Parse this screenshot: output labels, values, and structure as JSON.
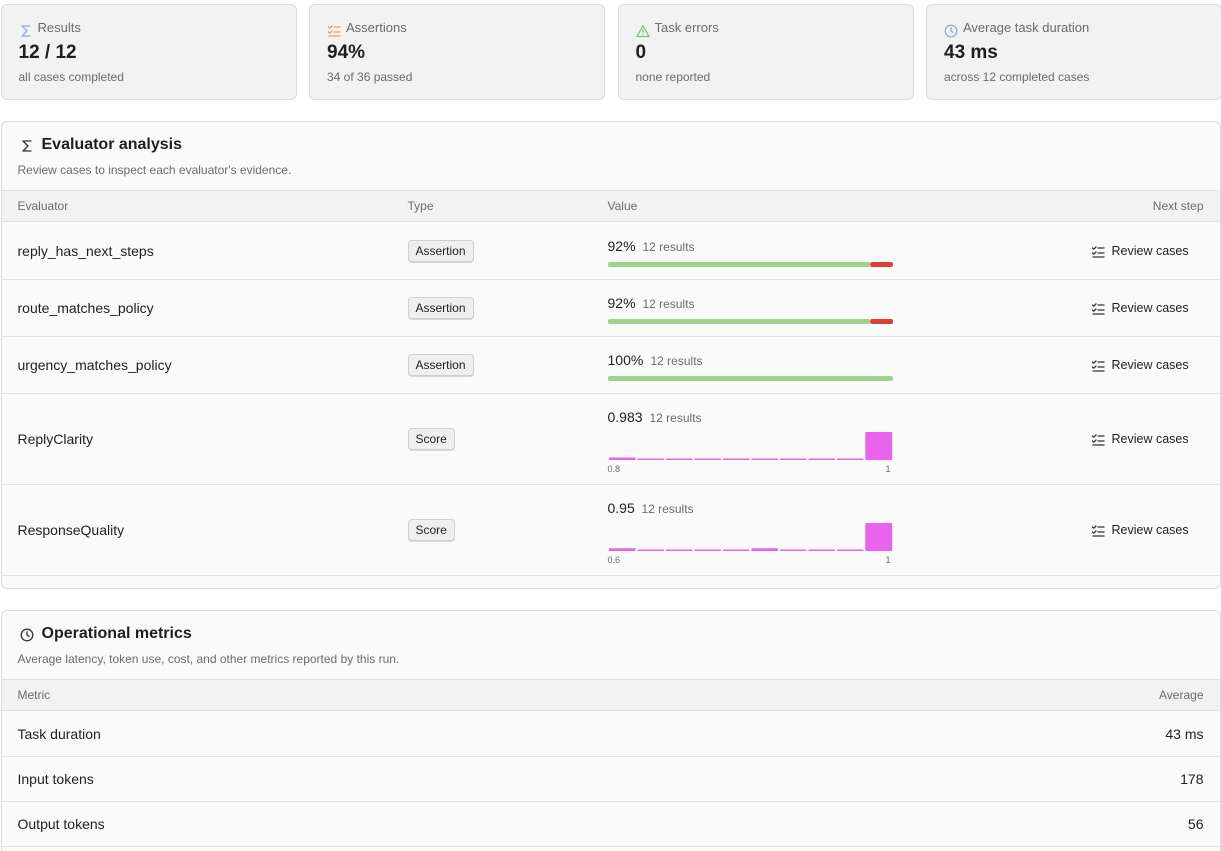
{
  "stats": [
    {
      "label": "Results",
      "value": "12 / 12",
      "detail": "all cases completed"
    },
    {
      "label": "Assertions",
      "value": "94%",
      "detail": "34 of 36 passed"
    },
    {
      "label": "Task errors",
      "value": "0",
      "detail": "none reported"
    },
    {
      "label": "Average task duration",
      "value": "43 ms",
      "detail": "across 12 completed cases"
    }
  ],
  "evaluators": {
    "title": "Evaluator analysis",
    "subtitle": "Review cases to inspect each evaluator's evidence.",
    "columns": [
      "Evaluator",
      "Type",
      "Value",
      "Next step"
    ],
    "rows": [
      {
        "name": "reply_has_next_steps",
        "type": "Assertion",
        "value": 92,
        "value_label": "92%",
        "count": "12 results",
        "action": "Review cases"
      },
      {
        "name": "route_matches_policy",
        "type": "Assertion",
        "value": 92,
        "value_label": "92%",
        "count": "12 results",
        "action": "Review cases"
      },
      {
        "name": "urgency_matches_policy",
        "type": "Assertion",
        "value": 100,
        "value_label": "100%",
        "count": "12 results",
        "action": "Review cases"
      },
      {
        "name": "ReplyClarity",
        "type": "Score",
        "value_label": "0.983",
        "count": "12 results",
        "action": "Review cases",
        "histogram": {
          "bins": [
            0.8,
            0.82,
            0.84,
            0.86,
            0.88,
            0.9,
            0.92,
            0.94,
            0.96,
            0.98,
            1
          ],
          "counts": [
            1,
            0,
            0,
            0,
            0,
            0,
            0,
            0,
            0,
            11
          ],
          "xlim": [
            0.8,
            1
          ],
          "xticks": [
            0.8,
            1
          ]
        }
      },
      {
        "name": "ResponseQuality",
        "type": "Score",
        "value_label": "0.95",
        "count": "12 results",
        "action": "Review cases",
        "histogram": {
          "bins": [
            0.6,
            0.64,
            0.68,
            0.72,
            0.76,
            0.8,
            0.84,
            0.88,
            0.92,
            0.96,
            1
          ],
          "counts": [
            1,
            0,
            0,
            0,
            0,
            1,
            0,
            0,
            0,
            10
          ],
          "xlim": [
            0.6,
            1
          ],
          "xticks": [
            0.6,
            1
          ]
        }
      }
    ]
  },
  "metrics": {
    "title": "Operational metrics",
    "subtitle": "Average latency, token use, cost, and other metrics reported by this run.",
    "columns": [
      "Metric",
      "Average"
    ],
    "rows": [
      [
        "Task duration",
        "43 ms"
      ],
      [
        "Input tokens",
        "178"
      ],
      [
        "Output tokens",
        "56"
      ]
    ]
  }
}
